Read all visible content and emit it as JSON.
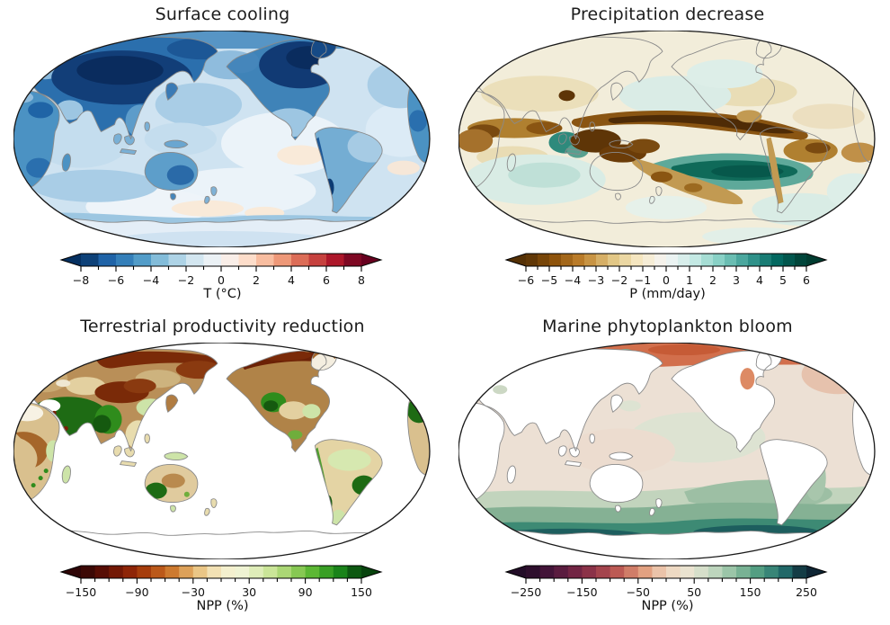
{
  "figure": {
    "background": "#ffffff",
    "coastline_color": "#8a8a8a",
    "outline_color": "#1a1a1a"
  },
  "chart_data": {
    "type": "map",
    "subtype": "filled-contour world maps, 2x2 panel figure",
    "projection": "Robinson, Pacific-centered",
    "layout": {
      "rows": 2,
      "cols": 2,
      "colorbar_position": "bottom",
      "colorbar_extend": "both"
    },
    "panels": [
      {
        "title": "Surface cooling",
        "variable": "surface temperature anomaly",
        "colorbar": {
          "label": "T (°C)",
          "min": -8,
          "max": 8,
          "segment_count": 16,
          "extend": "both",
          "colormap_name": "RdBu_r",
          "colormap_anchors": [
            "#053061",
            "#2166ac",
            "#4393c3",
            "#92c5de",
            "#d1e5f0",
            "#f7f7f7",
            "#fddbc7",
            "#f4a582",
            "#d6604d",
            "#b2182b",
            "#67001f"
          ],
          "tick_values": [
            -8,
            -7,
            -6,
            -5,
            -4,
            -3,
            -2,
            -1,
            0,
            1,
            2,
            3,
            4,
            5,
            6,
            7,
            8
          ],
          "tick_labels": [
            "−8",
            "",
            "−6",
            "",
            "−4",
            "",
            "−2",
            "",
            "0",
            "",
            "2",
            "",
            "4",
            "",
            "6",
            "",
            "8"
          ]
        },
        "pattern_summary": "Strong cooling of −6 to −8 °C over central/eastern Asia, Canada and the Arctic; moderate cooling (−1 to −4 °C) over most oceans and southern continents; near-zero to slightly warm (0 to +1 °C) patches in the eastern tropical Pacific and mid-latitude Southern Ocean."
      },
      {
        "title": "Precipitation decrease",
        "variable": "precipitation anomaly",
        "colorbar": {
          "label": "P (mm/day)",
          "min": -6,
          "max": 6,
          "segment_count": 24,
          "extend": "both",
          "colormap_name": "BrBG",
          "colormap_anchors": [
            "#543005",
            "#8c510a",
            "#bf812d",
            "#dfc27d",
            "#f6e8c3",
            "#f5f5f5",
            "#c7eae5",
            "#80cdc1",
            "#35978f",
            "#01665e",
            "#003c30"
          ],
          "tick_values": [
            -6,
            -5.5,
            -5,
            -4.5,
            -4,
            -3.5,
            -3,
            -2.5,
            -2,
            -1.5,
            -1,
            -0.5,
            0,
            0.5,
            1,
            1.5,
            2,
            2.5,
            3,
            3.5,
            4,
            4.5,
            5,
            5.5,
            6
          ],
          "tick_labels": [
            "−6",
            "",
            "−5",
            "",
            "−4",
            "",
            "−3",
            "",
            "−2",
            "",
            "−1",
            "",
            "0",
            "",
            "1",
            "",
            "2",
            "",
            "3",
            "",
            "4",
            "",
            "5",
            "",
            "6"
          ]
        },
        "pattern_summary": "Strong drying (−4 to −6 mm/day, dark brown) along the equatorial Indo-Pacific rain belt from Indonesia to Central America and over the tropical Indian Ocean and Amazon; a broad wetting band (+2 to +6 mm/day, teal) over the central South Pacific; weak drying (0 to −1 mm/day, cream) elsewhere."
      },
      {
        "title": "Terrestrial productivity reduction",
        "variable": "land net primary productivity change",
        "colorbar": {
          "label": "NPP (%)",
          "min": -150,
          "max": 150,
          "segment_count": 20,
          "extend": "both",
          "colormap_name": "brown-green diverging",
          "colormap_anchors": [
            "#2e0506",
            "#5c0e04",
            "#8a2106",
            "#b2490f",
            "#d07f33",
            "#e9c27e",
            "#f6eecb",
            "#eef3d4",
            "#cfe79e",
            "#9cd063",
            "#55b42f",
            "#1c8a1b",
            "#07430d"
          ],
          "tick_values": [
            -150,
            -135,
            -120,
            -105,
            -90,
            -75,
            -60,
            -45,
            -30,
            -15,
            0,
            15,
            30,
            45,
            60,
            75,
            90,
            105,
            120,
            135,
            150
          ],
          "tick_labels": [
            "−150",
            "",
            "",
            "",
            "−90",
            "",
            "",
            "",
            "−30",
            "",
            "",
            "",
            "30",
            "",
            "",
            "",
            "90",
            "",
            "",
            "",
            "150"
          ]
        },
        "pattern_summary": "NPP losses up to −90 to −150% (browns) across boreal Eurasia, Siberia, Alaska and northern Canada; gains up to +90 to +150% (dark greens) over the Middle East, India, western North America, the Andes, southeastern South America and southwestern Australia; tropics weakly changed (pale tan/green); oceans masked white."
      },
      {
        "title": "Marine phytoplankton bloom",
        "variable": "ocean net primary productivity change",
        "colorbar": {
          "label": "NPP (%)",
          "min": -250,
          "max": 250,
          "segment_count": 20,
          "extend": "both",
          "colormap_name": "plum-salmon-cream-green-navy diverging",
          "colormap_anchors": [
            "#230d28",
            "#46153a",
            "#6e2343",
            "#98394a",
            "#c05e55",
            "#e09b7a",
            "#f0d4bd",
            "#e9e5d2",
            "#c3d8c1",
            "#8abd9d",
            "#4d9a7f",
            "#23706e",
            "#0e2534"
          ],
          "tick_values": [
            -250,
            -225,
            -200,
            -175,
            -150,
            -125,
            -100,
            -75,
            -50,
            -25,
            0,
            25,
            50,
            75,
            100,
            125,
            150,
            175,
            200,
            225,
            250
          ],
          "tick_labels": [
            "−250",
            "",
            "",
            "",
            "−150",
            "",
            "",
            "",
            "−50",
            "",
            "",
            "",
            "50",
            "",
            "",
            "",
            "150",
            "",
            "",
            "",
            "250"
          ]
        },
        "pattern_summary": "Large marine NPP increases (+150 to +250%, dark green to navy) throughout the Southern Ocean with the strongest bloom next to Antarctica; decreases of −50 to −150% (salmon/red) across the Arctic Ocean and Hudson Bay; weak changes (±50%, pale pink/sage) over tropical and northern oceans; land masked white."
      }
    ]
  }
}
